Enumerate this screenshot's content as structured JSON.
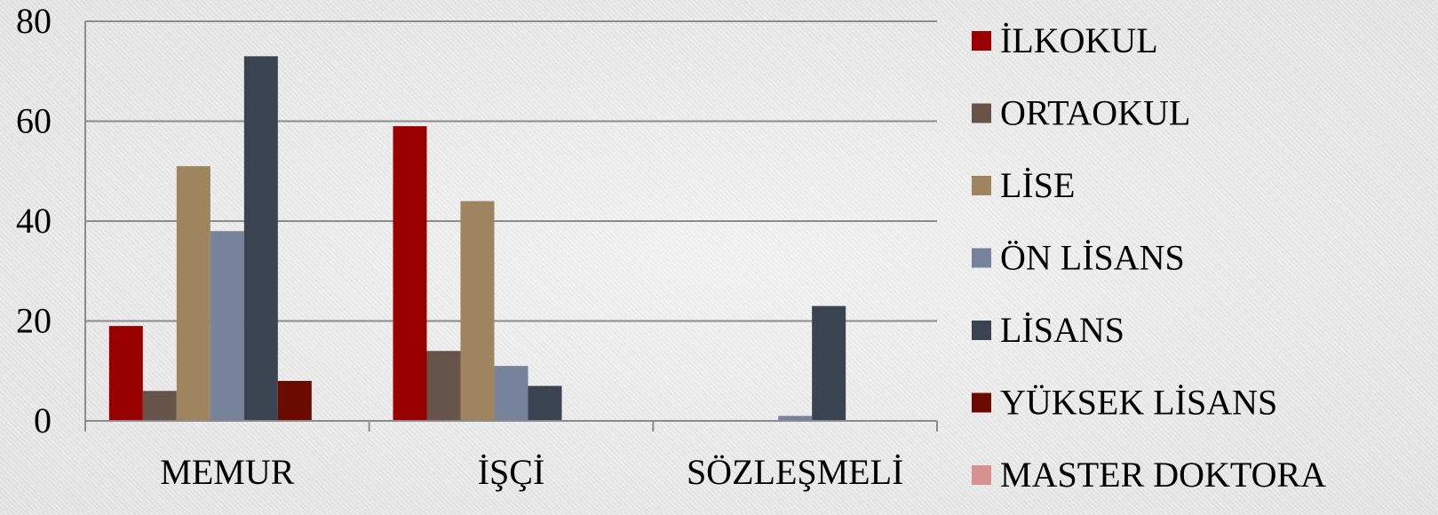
{
  "chart_data": {
    "type": "bar",
    "categories": [
      "MEMUR",
      "İŞÇİ",
      "SÖZLEŞMELİ"
    ],
    "series": [
      {
        "name": "İLKOKUL",
        "color": "#9b0000",
        "values": [
          19,
          59,
          0
        ]
      },
      {
        "name": "ORTAOKUL",
        "color": "#66544b",
        "values": [
          6,
          14,
          0
        ]
      },
      {
        "name": "LİSE",
        "color": "#9e8560",
        "values": [
          51,
          44,
          0
        ]
      },
      {
        "name": "ÖN LİSANS",
        "color": "#76839b",
        "values": [
          38,
          11,
          1
        ]
      },
      {
        "name": "LİSANS",
        "color": "#394450",
        "values": [
          73,
          7,
          23
        ]
      },
      {
        "name": "YÜKSEK LİSANS",
        "color": "#6a0a00",
        "values": [
          8,
          0,
          0
        ]
      },
      {
        "name": "MASTER DOKTORA",
        "color": "#d89191",
        "values": [
          0,
          0,
          0
        ]
      }
    ],
    "yticks": [
      "0",
      "20",
      "40",
      "60",
      "80"
    ],
    "ylim": [
      0,
      80
    ],
    "grid": true,
    "legend": "right"
  }
}
